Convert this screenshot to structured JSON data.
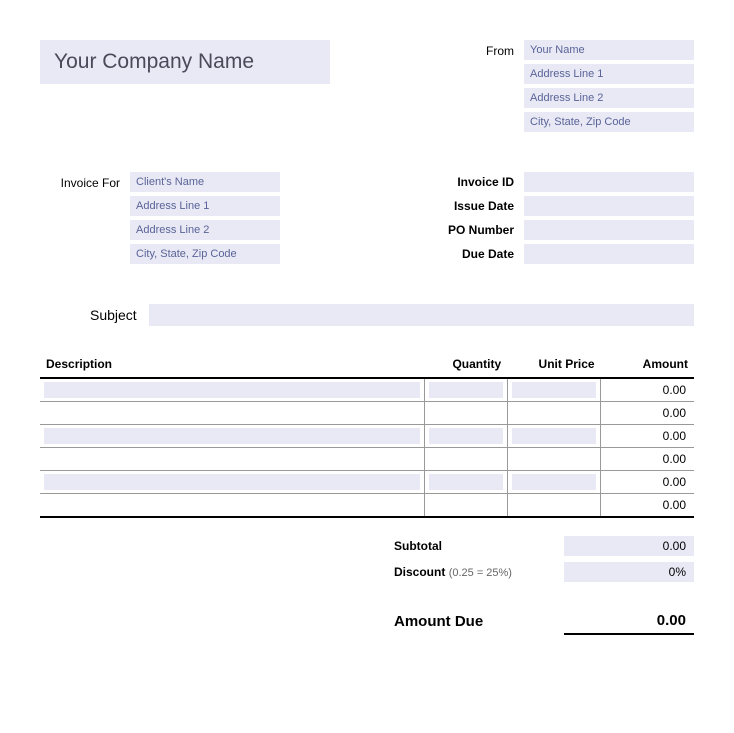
{
  "company": {
    "name_placeholder": "Your Company Name"
  },
  "from": {
    "label": "From",
    "name": "Your Name",
    "addr1": "Address Line 1",
    "addr2": "Address Line 2",
    "city": "City, State, Zip Code"
  },
  "invoice_for": {
    "label": "Invoice For",
    "client": "Client's Name",
    "addr1": "Address Line 1",
    "addr2": "Address Line 2",
    "city": "City, State, Zip Code"
  },
  "meta": {
    "invoice_id_label": "Invoice ID",
    "issue_date_label": "Issue Date",
    "po_number_label": "PO Number",
    "due_date_label": "Due Date"
  },
  "subject": {
    "label": "Subject"
  },
  "columns": {
    "description": "Description",
    "quantity": "Quantity",
    "unit_price": "Unit Price",
    "amount": "Amount"
  },
  "lines": [
    {
      "amount": "0.00"
    },
    {
      "amount": "0.00"
    },
    {
      "amount": "0.00"
    },
    {
      "amount": "0.00"
    },
    {
      "amount": "0.00"
    },
    {
      "amount": "0.00"
    }
  ],
  "totals": {
    "subtotal_label": "Subtotal",
    "subtotal": "0.00",
    "discount_label": "Discount",
    "discount_hint": "(0.25 = 25%)",
    "discount": "0%",
    "amount_due_label": "Amount Due",
    "amount_due": "0.00"
  },
  "colors": {
    "field_bg": "#e8e9f5",
    "placeholder_text": "#5a6397",
    "header_text": "#4a4a5a",
    "border_dark": "#000000",
    "border_light": "#999999"
  }
}
